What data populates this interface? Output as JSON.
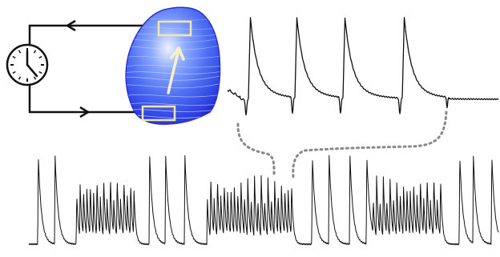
{
  "figure": {
    "clock_icon": "clock-icon",
    "heart_map": {
      "gradient_colors": [
        "#1414b4",
        "#2b3ee0",
        "#4f6ff2",
        "#8aa8ff",
        "#eef2ff"
      ],
      "outline_color": "#2a2fd0",
      "region_box_color": "#f2e6a6",
      "propagation_arrow_color": "#f8f1c8"
    },
    "wire_color": "#111111",
    "trace_color": "#111111",
    "connector_color": "#888888"
  }
}
